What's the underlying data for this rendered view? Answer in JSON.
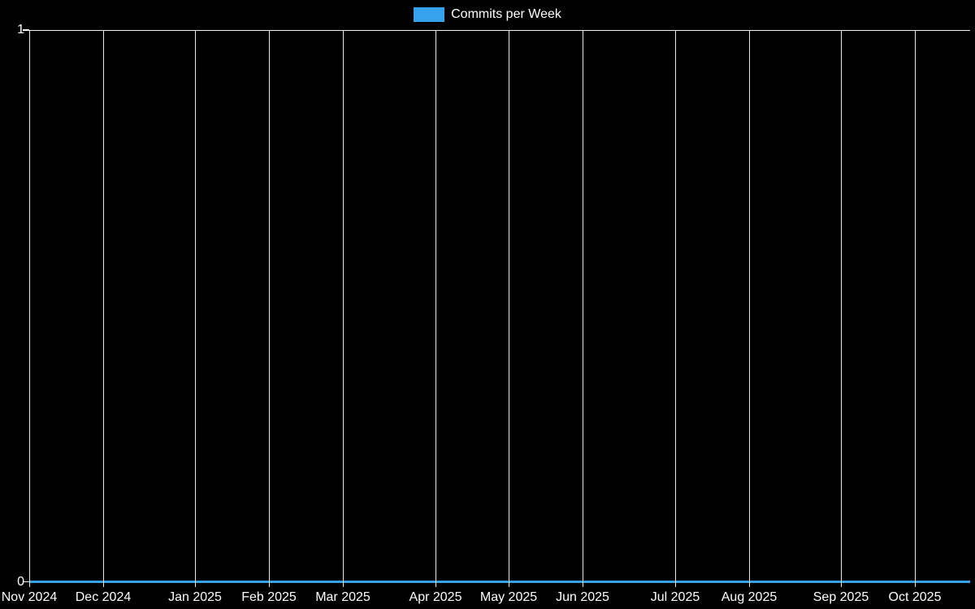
{
  "legend": {
    "label": "Commits per Week",
    "swatch_color": "#36a2eb"
  },
  "colors": {
    "background": "#000000",
    "grid": "#ffffff",
    "text": "#ffffff",
    "series": "#36a2eb"
  },
  "chart_data": {
    "type": "line",
    "title": "",
    "xlabel": "",
    "ylabel": "",
    "legend_position": "top-center",
    "grid": "vertical-only",
    "ylim": [
      0,
      1
    ],
    "y_ticks": [
      {
        "label": "1",
        "value": 1
      },
      {
        "label": "0",
        "value": 0
      }
    ],
    "x_ticks": [
      {
        "label": "Nov 2024",
        "week_offset": 0
      },
      {
        "label": "Dec 2024",
        "week_offset": 4
      },
      {
        "label": "Jan 2025",
        "week_offset": 9
      },
      {
        "label": "Feb 2025",
        "week_offset": 13
      },
      {
        "label": "Mar 2025",
        "week_offset": 17
      },
      {
        "label": "Apr 2025",
        "week_offset": 22
      },
      {
        "label": "May 2025",
        "week_offset": 26
      },
      {
        "label": "Jun 2025",
        "week_offset": 30
      },
      {
        "label": "Jul 2025",
        "week_offset": 35
      },
      {
        "label": "Aug 2025",
        "week_offset": 39
      },
      {
        "label": "Sep 2025",
        "week_offset": 44
      },
      {
        "label": "Oct 2025",
        "week_offset": 48
      }
    ],
    "series": [
      {
        "name": "Commits per Week",
        "color": "#36a2eb",
        "x_unit": "week",
        "values": [
          0,
          0,
          0,
          0,
          0,
          0,
          0,
          0,
          0,
          0,
          0,
          0,
          0,
          0,
          0,
          0,
          0,
          0,
          0,
          0,
          0,
          0,
          0,
          0,
          0,
          0,
          0,
          0,
          0,
          0,
          0,
          0,
          0,
          0,
          0,
          0,
          0,
          0,
          0,
          0,
          0,
          0,
          0,
          0,
          0,
          0,
          0,
          0,
          0,
          0,
          0,
          0
        ]
      }
    ]
  }
}
